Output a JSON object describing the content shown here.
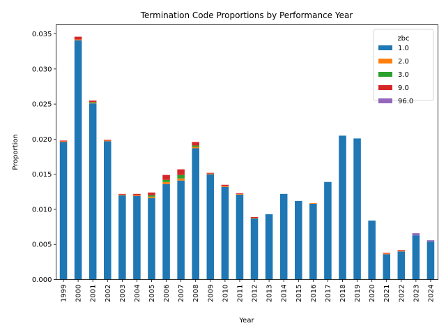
{
  "chart_data": {
    "type": "bar",
    "stacked": true,
    "title": "Termination Code Proportions by Performance Year",
    "xlabel": "Year",
    "ylabel": "Proportion",
    "ylim": [
      0,
      0.0363
    ],
    "yticks": [
      "0.000",
      "0.005",
      "0.010",
      "0.015",
      "0.020",
      "0.025",
      "0.030",
      "0.035"
    ],
    "ytick_values": [
      0,
      0.005,
      0.01,
      0.015,
      0.02,
      0.025,
      0.03,
      0.035
    ],
    "grid": false,
    "legend": {
      "title": "zbc",
      "placement": "top-right"
    },
    "categories": [
      "1999",
      "2000",
      "2001",
      "2002",
      "2003",
      "2004",
      "2005",
      "2006",
      "2007",
      "2008",
      "2009",
      "2010",
      "2011",
      "2012",
      "2013",
      "2014",
      "2015",
      "2016",
      "2017",
      "2018",
      "2019",
      "2020",
      "2021",
      "2022",
      "2023",
      "2024"
    ],
    "series": [
      {
        "name": "1.0",
        "color": "#1f77b4",
        "values": [
          0.0196,
          0.0341,
          0.0251,
          0.0197,
          0.012,
          0.0119,
          0.0116,
          0.0136,
          0.0141,
          0.0187,
          0.015,
          0.0132,
          0.0121,
          0.0087,
          0.0093,
          0.0122,
          0.0112,
          0.0108,
          0.0139,
          0.0205,
          0.0201,
          0.0084,
          0.0036,
          0.004,
          0.0063,
          0.0054
        ]
      },
      {
        "name": "2.0",
        "color": "#ff7f0e",
        "values": [
          0.0001,
          0.0001,
          0.0001,
          0.0001,
          0.0001,
          0.0001,
          0.0002,
          0.0003,
          0.0003,
          0.0002,
          0.0001,
          0.0001,
          0.0001,
          0.0001,
          0.0,
          0.0,
          0.0,
          0.0001,
          0.0,
          0.0,
          0.0,
          0.0,
          0.0001,
          0.0001,
          0.0,
          0.0
        ]
      },
      {
        "name": "3.0",
        "color": "#2ca02c",
        "values": [
          0.0,
          0.0,
          0.0001,
          0.0,
          0.0,
          0.0,
          0.0002,
          0.0003,
          0.0005,
          0.0002,
          0.0,
          0.0,
          0.0,
          0.0,
          0.0,
          0.0,
          0.0,
          0.0,
          0.0,
          0.0,
          0.0,
          0.0,
          0.0,
          0.0,
          0.0,
          0.0
        ]
      },
      {
        "name": "9.0",
        "color": "#d62728",
        "values": [
          0.0001,
          0.0004,
          0.0002,
          0.0001,
          0.0001,
          0.0002,
          0.0004,
          0.0007,
          0.0008,
          0.0005,
          0.0001,
          0.0002,
          0.0001,
          0.0001,
          0.0,
          0.0,
          0.0,
          0.0,
          0.0,
          0.0,
          0.0,
          0.0,
          0.0001,
          0.0001,
          0.0,
          0.0
        ]
      },
      {
        "name": "96.0",
        "color": "#9467bd",
        "values": [
          0.0,
          0.0,
          0.0,
          0.0,
          0.0,
          0.0,
          0.0,
          0.0,
          0.0,
          0.0,
          0.0,
          0.0,
          0.0,
          0.0,
          0.0,
          0.0,
          0.0,
          0.0,
          0.0,
          0.0,
          0.0,
          0.0,
          0.0,
          0.0,
          0.0003,
          0.0002
        ]
      }
    ]
  }
}
